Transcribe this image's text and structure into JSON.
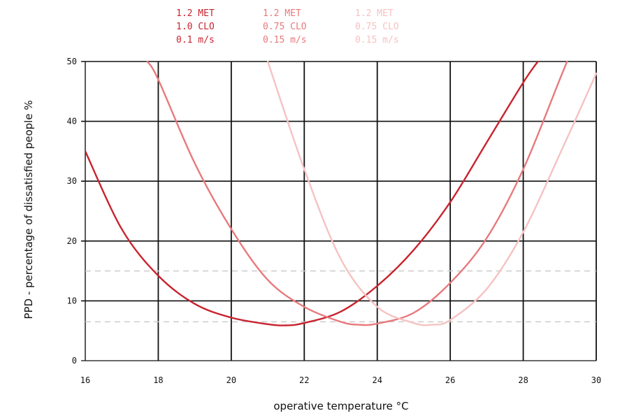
{
  "chart_data": {
    "type": "line",
    "title": "",
    "xlabel": "operative temperature °C",
    "ylabel": "PPD - percentage of dissatisfied people %",
    "xlim": [
      16,
      30
    ],
    "ylim": [
      0,
      50
    ],
    "x_ticks": [
      "16",
      "18",
      "20",
      "22",
      "24",
      "26",
      "28",
      "30"
    ],
    "y_ticks": [
      "0",
      "10",
      "20",
      "30",
      "40",
      "50"
    ],
    "grid": true,
    "legend_placement": "top",
    "series": [
      {
        "lines": [
          "1.2 MET",
          "1.0 CLO",
          "0.1 m/s"
        ],
        "color": "#c8232e",
        "x": [
          16,
          17,
          18,
          19,
          20,
          21,
          21.5,
          22,
          23,
          24,
          25,
          26,
          27,
          28,
          28.4
        ],
        "values": [
          35,
          22,
          14.2,
          9.5,
          7.2,
          6.1,
          5.9,
          6.3,
          8.2,
          12.5,
          18.5,
          26.5,
          36.5,
          46.5,
          50
        ]
      },
      {
        "lines": [
          "1.2  MET",
          "0.75 CLO",
          "0.15 m/s"
        ],
        "color": "#e8797c",
        "x": [
          17.7,
          18,
          19,
          20,
          21,
          22,
          23,
          23.5,
          24,
          25,
          26,
          27,
          28,
          29,
          29.2
        ],
        "values": [
          50,
          47,
          33,
          22,
          13.5,
          9,
          6.5,
          6,
          6.2,
          8,
          13,
          20.5,
          32,
          47,
          50
        ]
      },
      {
        "lines": [
          "1.2  MET",
          "0.75 CLO",
          "0.15 m/s"
        ],
        "color": "#f6c2c2",
        "x": [
          21,
          22,
          23,
          24,
          25,
          25.5,
          26,
          27,
          28,
          29,
          30
        ],
        "values": [
          50,
          32,
          17,
          9,
          6.3,
          6,
          6.8,
          12,
          21.5,
          34.5,
          48
        ]
      }
    ],
    "reference_lines": [
      {
        "y": 15,
        "color": "#cccccc",
        "style": "dashed"
      },
      {
        "y": 6.5,
        "color": "#cccccc",
        "style": "dashed"
      }
    ]
  }
}
